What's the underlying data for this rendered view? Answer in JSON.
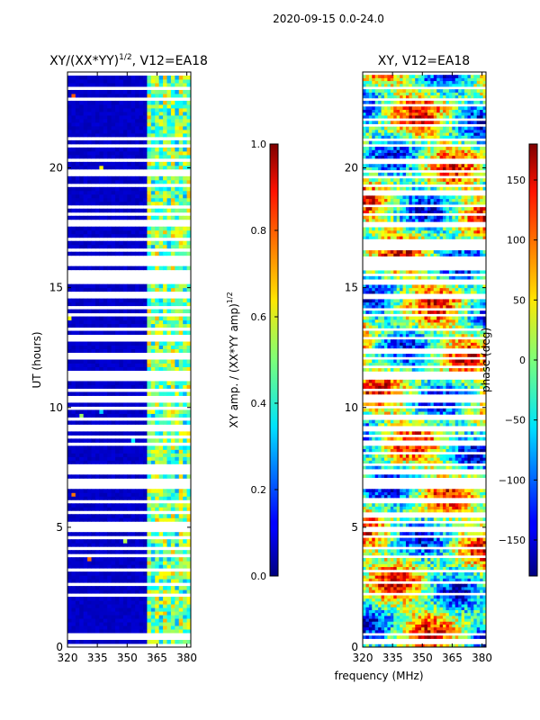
{
  "figure": {
    "suptitle": "2020-09-15 0.0-24.0",
    "shared_xlabel": "frequency (MHz)"
  },
  "chart_data": [
    {
      "type": "heatmap",
      "title_main": "XY/(XX*YY)",
      "title_sup": "1/2",
      "title_rest": ", V12=EA18",
      "xlabel": "",
      "ylabel": "UT (hours)",
      "xlim": [
        320,
        382
      ],
      "ylim": [
        0,
        24
      ],
      "x_ticks": [
        320,
        335,
        350,
        365,
        380
      ],
      "y_ticks": [
        0,
        5,
        10,
        15,
        20
      ],
      "colorbar": {
        "label_main": "XY amp. / (XX*YY amp)",
        "label_sup": "1/2",
        "range": [
          0.0,
          1.0
        ],
        "ticks": [
          "0.0",
          "0.2",
          "0.4",
          "0.6",
          "0.8",
          "1.0"
        ],
        "tick_values": [
          0.0,
          0.2,
          0.4,
          0.6,
          0.8,
          1.0
        ],
        "colormap": "jet"
      },
      "band_summary": [
        {
          "freq_range_mhz": [
            320,
            360
          ],
          "typical_value": 0.05
        },
        {
          "freq_range_mhz": [
            360,
            382
          ],
          "typical_value": 0.45
        }
      ]
    },
    {
      "type": "heatmap",
      "title": "XY, V12=EA18",
      "xlabel": "",
      "ylabel": "",
      "xlim": [
        320,
        382
      ],
      "ylim": [
        0,
        24
      ],
      "x_ticks": [
        320,
        335,
        350,
        365,
        380
      ],
      "y_ticks": [
        0,
        5,
        10,
        15,
        20
      ],
      "colorbar": {
        "label": "phase (deg)",
        "range": [
          -180,
          180
        ],
        "ticks": [
          "−150",
          "−100",
          "−50",
          "0",
          "50",
          "100",
          "150"
        ],
        "tick_values": [
          -150,
          -100,
          -50,
          0,
          50,
          100,
          150
        ],
        "colormap": "jet"
      },
      "value_range_deg": [
        -180,
        180
      ]
    }
  ]
}
